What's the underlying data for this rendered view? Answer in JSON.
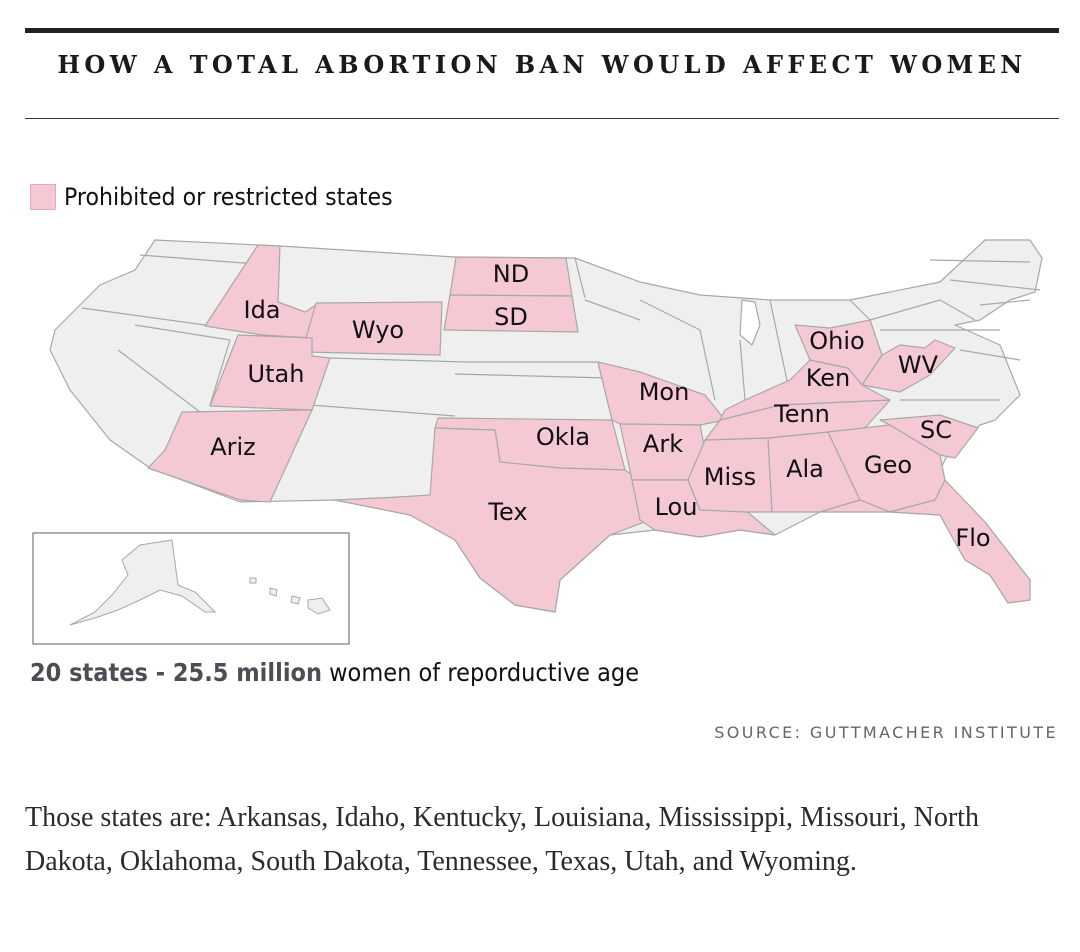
{
  "title": "HOW A TOTAL ABORTION BAN WOULD AFFECT WOMEN",
  "legend": {
    "label": "Prohibited or restricted states",
    "color": "#f5c9d3"
  },
  "colors": {
    "restricted": "#f5c9d3",
    "other": "#efefef",
    "border": "#a8a8a8"
  },
  "states": {
    "idaho": "Ida",
    "wyoming": "Wyo",
    "north_dakota": "ND",
    "south_dakota": "SD",
    "utah": "Utah",
    "arizona": "Ariz",
    "oklahoma": "Okla",
    "texas": "Tex",
    "missouri": "Mon",
    "arkansas": "Ark",
    "louisiana": "Lou",
    "mississippi": "Miss",
    "alabama": "Ala",
    "tennessee": "Tenn",
    "kentucky": "Ken",
    "ohio": "Ohio",
    "west_virginia": "WV",
    "georgia": "Geo",
    "south_carolina": "SC",
    "florida": "Flo"
  },
  "summary": {
    "highlight": "20 states - 25.5 million",
    "rest": " women of reporductive age"
  },
  "source": "SOURCE: GUTTMACHER INSTITUTE",
  "body_text": "Those states are: Arkansas, Idaho, Kentucky, Louisiana, Mississippi, Missouri, North Dakota, Oklahoma, South Dakota, Tennessee, Texas, Utah, and Wyoming."
}
